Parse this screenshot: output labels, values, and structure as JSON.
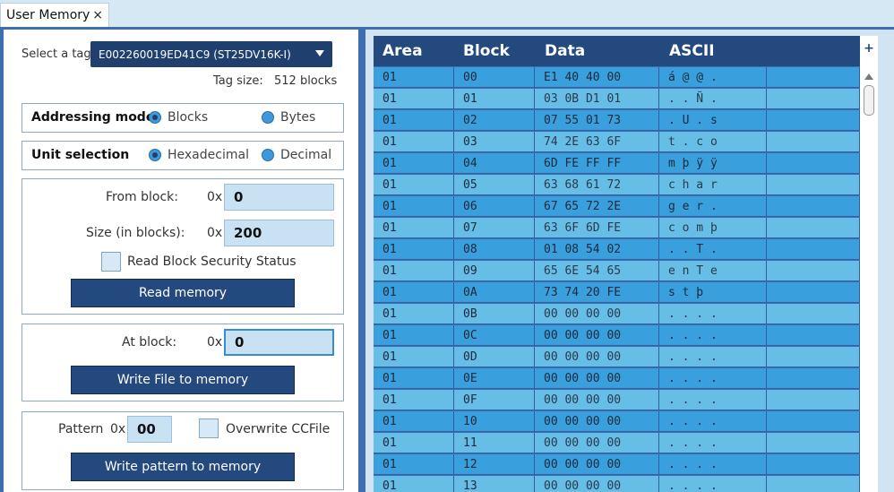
{
  "tab": {
    "title": "User Memory",
    "close": "×"
  },
  "tag": {
    "label": "Select a tag:",
    "value": "E002260019ED41C9 (ST25DV16K-I)",
    "size_label": "Tag size:",
    "size_value": "512 blocks"
  },
  "addressing": {
    "title": "Addressing mode",
    "opt1": "Blocks",
    "opt2": "Bytes",
    "selected": "Blocks"
  },
  "unit": {
    "title": "Unit selection",
    "opt1": "Hexadecimal",
    "opt2": "Decimal",
    "selected": "Hexadecimal"
  },
  "read": {
    "from_label": "From block:",
    "prefix": "0x",
    "from_value": "0",
    "size_label": "Size (in blocks):",
    "size_value": "200",
    "security_label": "Read Block Security Status",
    "button": "Read memory"
  },
  "write_file": {
    "at_label": "At block:",
    "prefix": "0x",
    "at_value": "0",
    "button": "Write File to memory"
  },
  "pattern": {
    "label": "Pattern",
    "prefix": "0x",
    "value": "00",
    "overwrite_label": "Overwrite CCFile",
    "button": "Write pattern to memory"
  },
  "grid": {
    "headers": {
      "area": "Area",
      "block": "Block",
      "data": "Data",
      "ascii": "ASCII"
    },
    "rows": [
      {
        "area": "01",
        "block": "00",
        "data": "E1 40 40 00",
        "ascii": "á @ @ ."
      },
      {
        "area": "01",
        "block": "01",
        "data": "03 0B D1 01",
        "ascii": ". . Ñ ."
      },
      {
        "area": "01",
        "block": "02",
        "data": "07 55 01 73",
        "ascii": ". U . s"
      },
      {
        "area": "01",
        "block": "03",
        "data": "74 2E 63 6F",
        "ascii": "t . c o"
      },
      {
        "area": "01",
        "block": "04",
        "data": "6D FE FF FF",
        "ascii": "m þ ÿ ÿ"
      },
      {
        "area": "01",
        "block": "05",
        "data": "63 68 61 72",
        "ascii": "c h a r"
      },
      {
        "area": "01",
        "block": "06",
        "data": "67 65 72 2E",
        "ascii": "g e r ."
      },
      {
        "area": "01",
        "block": "07",
        "data": "63 6F 6D FE",
        "ascii": "c o m þ"
      },
      {
        "area": "01",
        "block": "08",
        "data": "01 08 54 02",
        "ascii": ". . T ."
      },
      {
        "area": "01",
        "block": "09",
        "data": "65 6E 54 65",
        "ascii": "e n T e"
      },
      {
        "area": "01",
        "block": "0A",
        "data": "73 74 20 FE",
        "ascii": "s t   þ"
      },
      {
        "area": "01",
        "block": "0B",
        "data": "00 00 00 00",
        "ascii": ". . . ."
      },
      {
        "area": "01",
        "block": "0C",
        "data": "00 00 00 00",
        "ascii": ". . . ."
      },
      {
        "area": "01",
        "block": "0D",
        "data": "00 00 00 00",
        "ascii": ". . . ."
      },
      {
        "area": "01",
        "block": "0E",
        "data": "00 00 00 00",
        "ascii": ". . . ."
      },
      {
        "area": "01",
        "block": "0F",
        "data": "00 00 00 00",
        "ascii": ". . . ."
      },
      {
        "area": "01",
        "block": "10",
        "data": "00 00 00 00",
        "ascii": ". . . ."
      },
      {
        "area": "01",
        "block": "11",
        "data": "00 00 00 00",
        "ascii": ". . . ."
      },
      {
        "area": "01",
        "block": "12",
        "data": "00 00 00 00",
        "ascii": ". . . ."
      },
      {
        "area": "01",
        "block": "13",
        "data": "00 00 00 00",
        "ascii": ". . . ."
      }
    ]
  },
  "scroll": {
    "plus": "+"
  }
}
